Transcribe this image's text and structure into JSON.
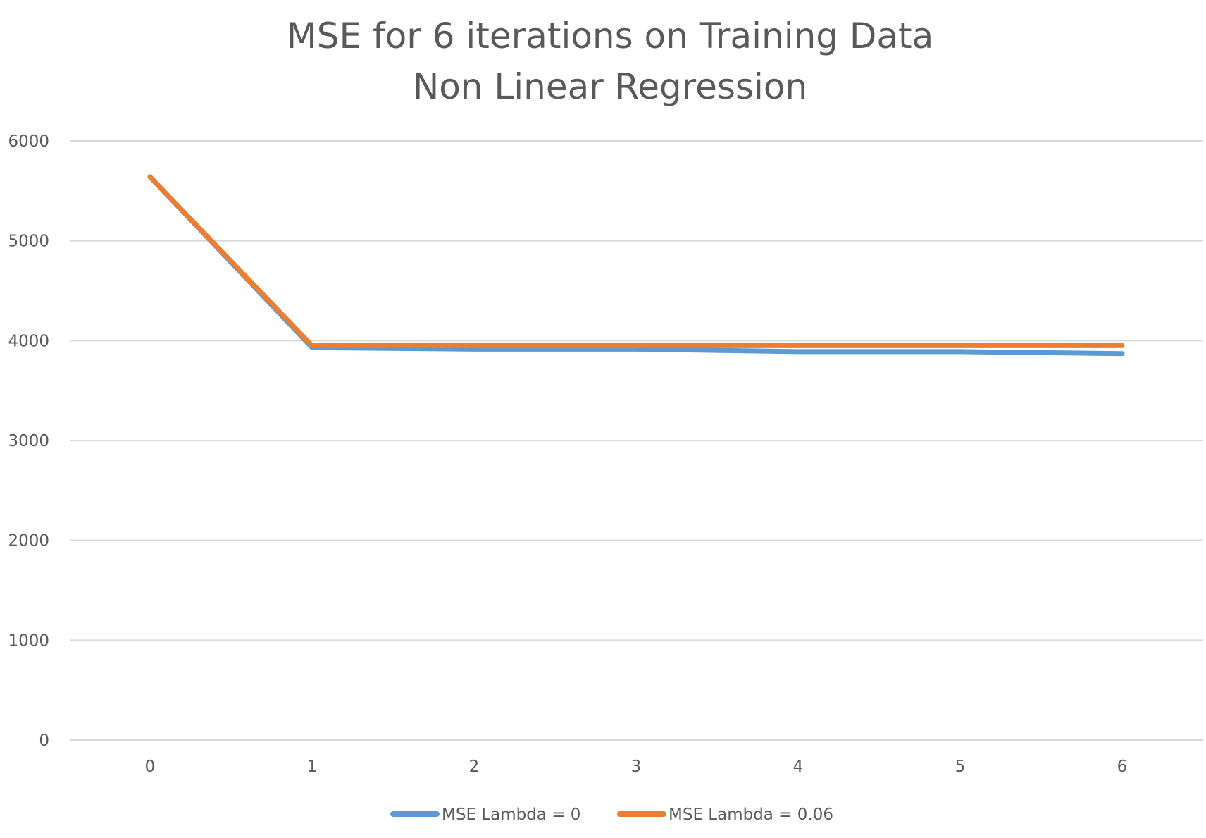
{
  "chart_data": {
    "type": "line",
    "title": "",
    "subtitle": "",
    "title_lines": [
      "MSE for 6 iterations on Training Data",
      "Non Linear Regression"
    ],
    "xlabel": "",
    "ylabel": "",
    "x": [
      0,
      1,
      2,
      3,
      4,
      5,
      6
    ],
    "x_tick_labels": [
      "0",
      "1",
      "2",
      "3",
      "4",
      "5",
      "6"
    ],
    "y_tick_labels": [
      "0",
      "1000",
      "2000",
      "3000",
      "4000",
      "5000",
      "6000"
    ],
    "y_ticks": [
      0,
      1000,
      2000,
      3000,
      4000,
      5000,
      6000
    ],
    "ylim": [
      0,
      6000
    ],
    "grid": true,
    "legend_position": "bottom",
    "series": [
      {
        "name": "MSE Lambda = 0",
        "color": "#5b9bd5",
        "values": [
          5640,
          3930,
          3915,
          3915,
          3890,
          3890,
          3870
        ]
      },
      {
        "name": "MSE Lambda = 0.06",
        "color": "#ed7d31",
        "values": [
          5640,
          3950,
          3950,
          3950,
          3950,
          3950,
          3950
        ]
      }
    ]
  }
}
